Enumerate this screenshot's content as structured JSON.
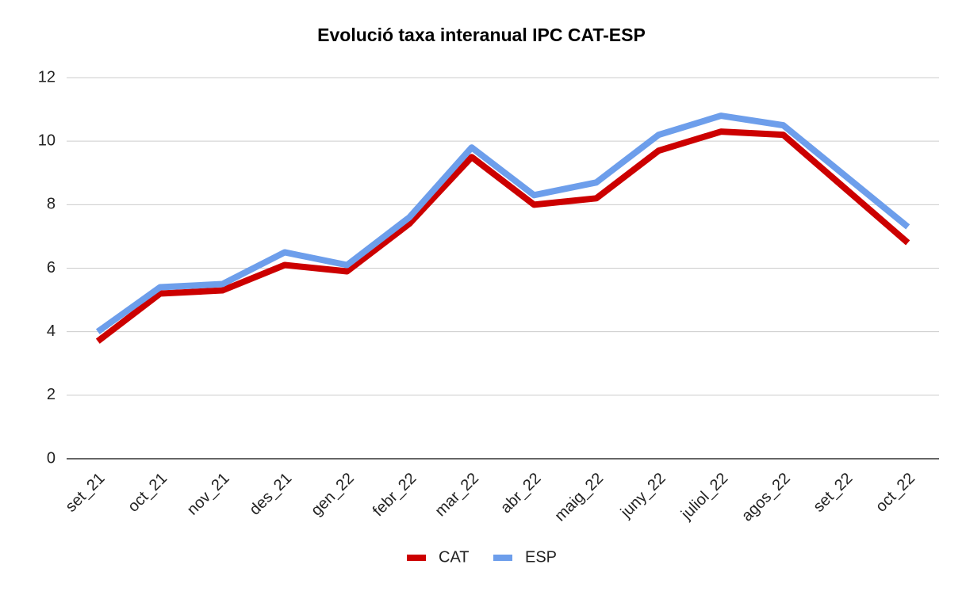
{
  "chart_data": {
    "type": "line",
    "title": "Evolució taxa interanual IPC CAT-ESP",
    "categories": [
      "set_21",
      "oct_21",
      "nov_21",
      "des_21",
      "gen_22",
      "febr_22",
      "mar_22",
      "abr_22",
      "maig_22",
      "juny_22",
      "juliol_22",
      "agos_22",
      "set_22",
      "oct_22"
    ],
    "series": [
      {
        "name": "CAT",
        "color": "#cc0000",
        "values": [
          3.7,
          5.2,
          5.3,
          6.1,
          5.9,
          7.4,
          9.5,
          8.0,
          8.2,
          9.7,
          10.3,
          10.2,
          8.5,
          6.8
        ]
      },
      {
        "name": "ESP",
        "color": "#6d9eeb",
        "values": [
          4.0,
          5.4,
          5.5,
          6.5,
          6.1,
          7.6,
          9.8,
          8.3,
          8.7,
          10.2,
          10.8,
          10.5,
          8.9,
          7.3
        ]
      }
    ],
    "ylim": [
      0,
      12
    ],
    "yticks": [
      0,
      2,
      4,
      6,
      8,
      10,
      12
    ],
    "grid": true,
    "legend": "bottom"
  }
}
